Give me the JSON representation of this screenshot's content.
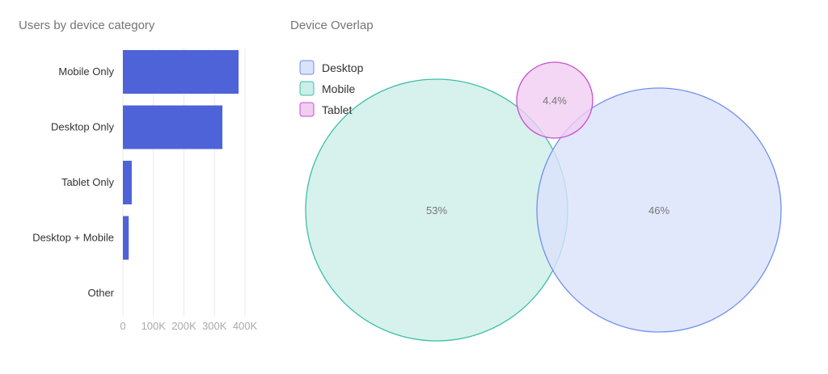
{
  "chart_data": [
    {
      "type": "bar",
      "orientation": "horizontal",
      "title": "Users by device category",
      "categories": [
        "Mobile Only",
        "Desktop Only",
        "Tablet Only",
        "Desktop + Mobile",
        "Other"
      ],
      "values": [
        379000,
        326000,
        29000,
        19000,
        0
      ],
      "xlim": [
        0,
        400000
      ],
      "xticks": [
        "0",
        "100K",
        "200K",
        "300K",
        "400K"
      ],
      "color": "#4e63d8",
      "grid": true
    },
    {
      "type": "venn",
      "title": "Device Overlap",
      "sets": [
        {
          "name": "Desktop",
          "value": "46%",
          "fill": "#dbe2fb",
          "stroke": "#6f8ff0"
        },
        {
          "name": "Mobile",
          "value": "53%",
          "fill": "#cdede8",
          "stroke": "#3bbfa8"
        },
        {
          "name": "Tablet",
          "value": "4.4%",
          "fill": "#f0cdf1",
          "stroke": "#c94fd0"
        }
      ],
      "legend_position": "top-left"
    }
  ]
}
